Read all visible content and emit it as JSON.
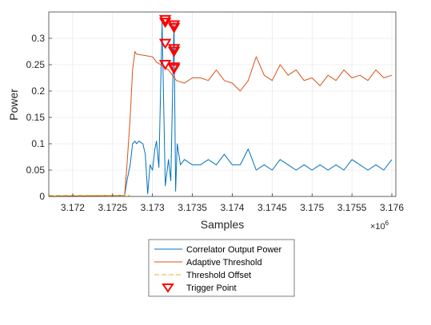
{
  "chart_data": {
    "type": "line",
    "xlabel": "Samples",
    "ylabel": "Power",
    "x_exponent_label": "×10",
    "x_exponent_power": "6",
    "xlim": [
      3.1717,
      3.17605
    ],
    "ylim": [
      0,
      0.35
    ],
    "xticks": [
      3.172,
      3.1725,
      3.173,
      3.1735,
      3.174,
      3.1745,
      3.175,
      3.1755,
      3.176
    ],
    "xtick_labels": [
      "3.172",
      "3.1725",
      "3.173",
      "3.1735",
      "3.174",
      "3.1745",
      "3.175",
      "3.1755",
      "3.176"
    ],
    "yticks": [
      0,
      0.05,
      0.1,
      0.15,
      0.2,
      0.25,
      0.3
    ],
    "ytick_labels": [
      "0",
      "0.05",
      "0.1",
      "0.15",
      "0.2",
      "0.25",
      "0.3"
    ],
    "grid": true,
    "legend_position": "below",
    "series": [
      {
        "name": "Correlator Output Power",
        "color": "#0072BD",
        "style": "solid",
        "x": [
          3.1717,
          3.17265,
          3.17268,
          3.17272,
          3.17275,
          3.17278,
          3.1728,
          3.17283,
          3.17286,
          3.17288,
          3.17291,
          3.17294,
          3.17297,
          3.173,
          3.17303,
          3.17305,
          3.17308,
          3.17312,
          3.17316,
          3.1732,
          3.17323,
          3.17327,
          3.17329,
          3.17331,
          3.17335,
          3.1734,
          3.1735,
          3.1736,
          3.1737,
          3.1738,
          3.1739,
          3.174,
          3.1741,
          3.1742,
          3.1743,
          3.1744,
          3.1745,
          3.1746,
          3.1747,
          3.1748,
          3.1749,
          3.175,
          3.1751,
          3.1752,
          3.1753,
          3.1754,
          3.1755,
          3.1756,
          3.1757,
          3.1758,
          3.1759,
          3.176
        ],
        "values": [
          0,
          0.002,
          0.03,
          0.06,
          0.1,
          0.105,
          0.1,
          0.105,
          0.102,
          0.1,
          0.08,
          0.005,
          0.06,
          0.05,
          0.09,
          0.105,
          0.055,
          0.33,
          0.02,
          0.07,
          0.03,
          0.33,
          0.01,
          0.1,
          0.06,
          0.07,
          0.06,
          0.06,
          0.07,
          0.06,
          0.08,
          0.06,
          0.06,
          0.09,
          0.05,
          0.06,
          0.05,
          0.07,
          0.06,
          0.05,
          0.06,
          0.05,
          0.06,
          0.05,
          0.06,
          0.05,
          0.07,
          0.06,
          0.05,
          0.06,
          0.05,
          0.07
        ]
      },
      {
        "name": "Adaptive Threshold",
        "color": "#D95319",
        "style": "solid",
        "x": [
          3.1717,
          3.17265,
          3.17268,
          3.17272,
          3.17275,
          3.17278,
          3.1728,
          3.173,
          3.17305,
          3.1731,
          3.17315,
          3.1732,
          3.17325,
          3.1733,
          3.1734,
          3.1735,
          3.1736,
          3.1737,
          3.1738,
          3.1739,
          3.174,
          3.1741,
          3.1742,
          3.1743,
          3.1744,
          3.1745,
          3.1746,
          3.1747,
          3.1748,
          3.1749,
          3.175,
          3.1751,
          3.1752,
          3.1753,
          3.1754,
          3.1755,
          3.1756,
          3.1757,
          3.1758,
          3.1759,
          3.176
        ],
        "values": [
          0,
          0.002,
          0.06,
          0.15,
          0.24,
          0.275,
          0.27,
          0.265,
          0.255,
          0.25,
          0.245,
          0.24,
          0.23,
          0.22,
          0.215,
          0.225,
          0.225,
          0.22,
          0.24,
          0.22,
          0.215,
          0.2,
          0.22,
          0.265,
          0.23,
          0.22,
          0.25,
          0.23,
          0.24,
          0.22,
          0.225,
          0.21,
          0.23,
          0.22,
          0.24,
          0.225,
          0.23,
          0.22,
          0.24,
          0.225,
          0.23
        ]
      },
      {
        "name": "Threshold Offset",
        "color": "#EDB120",
        "style": "dashed",
        "x": [
          3.1717,
          3.17265,
          3.17268,
          3.17272
        ],
        "values": [
          0.002,
          0.002,
          0.002,
          0.002
        ]
      },
      {
        "name": "Trigger Point",
        "color": "#FF0000",
        "style": "marker",
        "x": [
          3.17316,
          3.17316,
          3.17316,
          3.17316,
          3.17327,
          3.17327,
          3.17327,
          3.17327,
          3.17327,
          3.17327
        ],
        "values": [
          0.335,
          0.33,
          0.29,
          0.25,
          0.325,
          0.32,
          0.28,
          0.275,
          0.245,
          0.242
        ]
      }
    ]
  }
}
